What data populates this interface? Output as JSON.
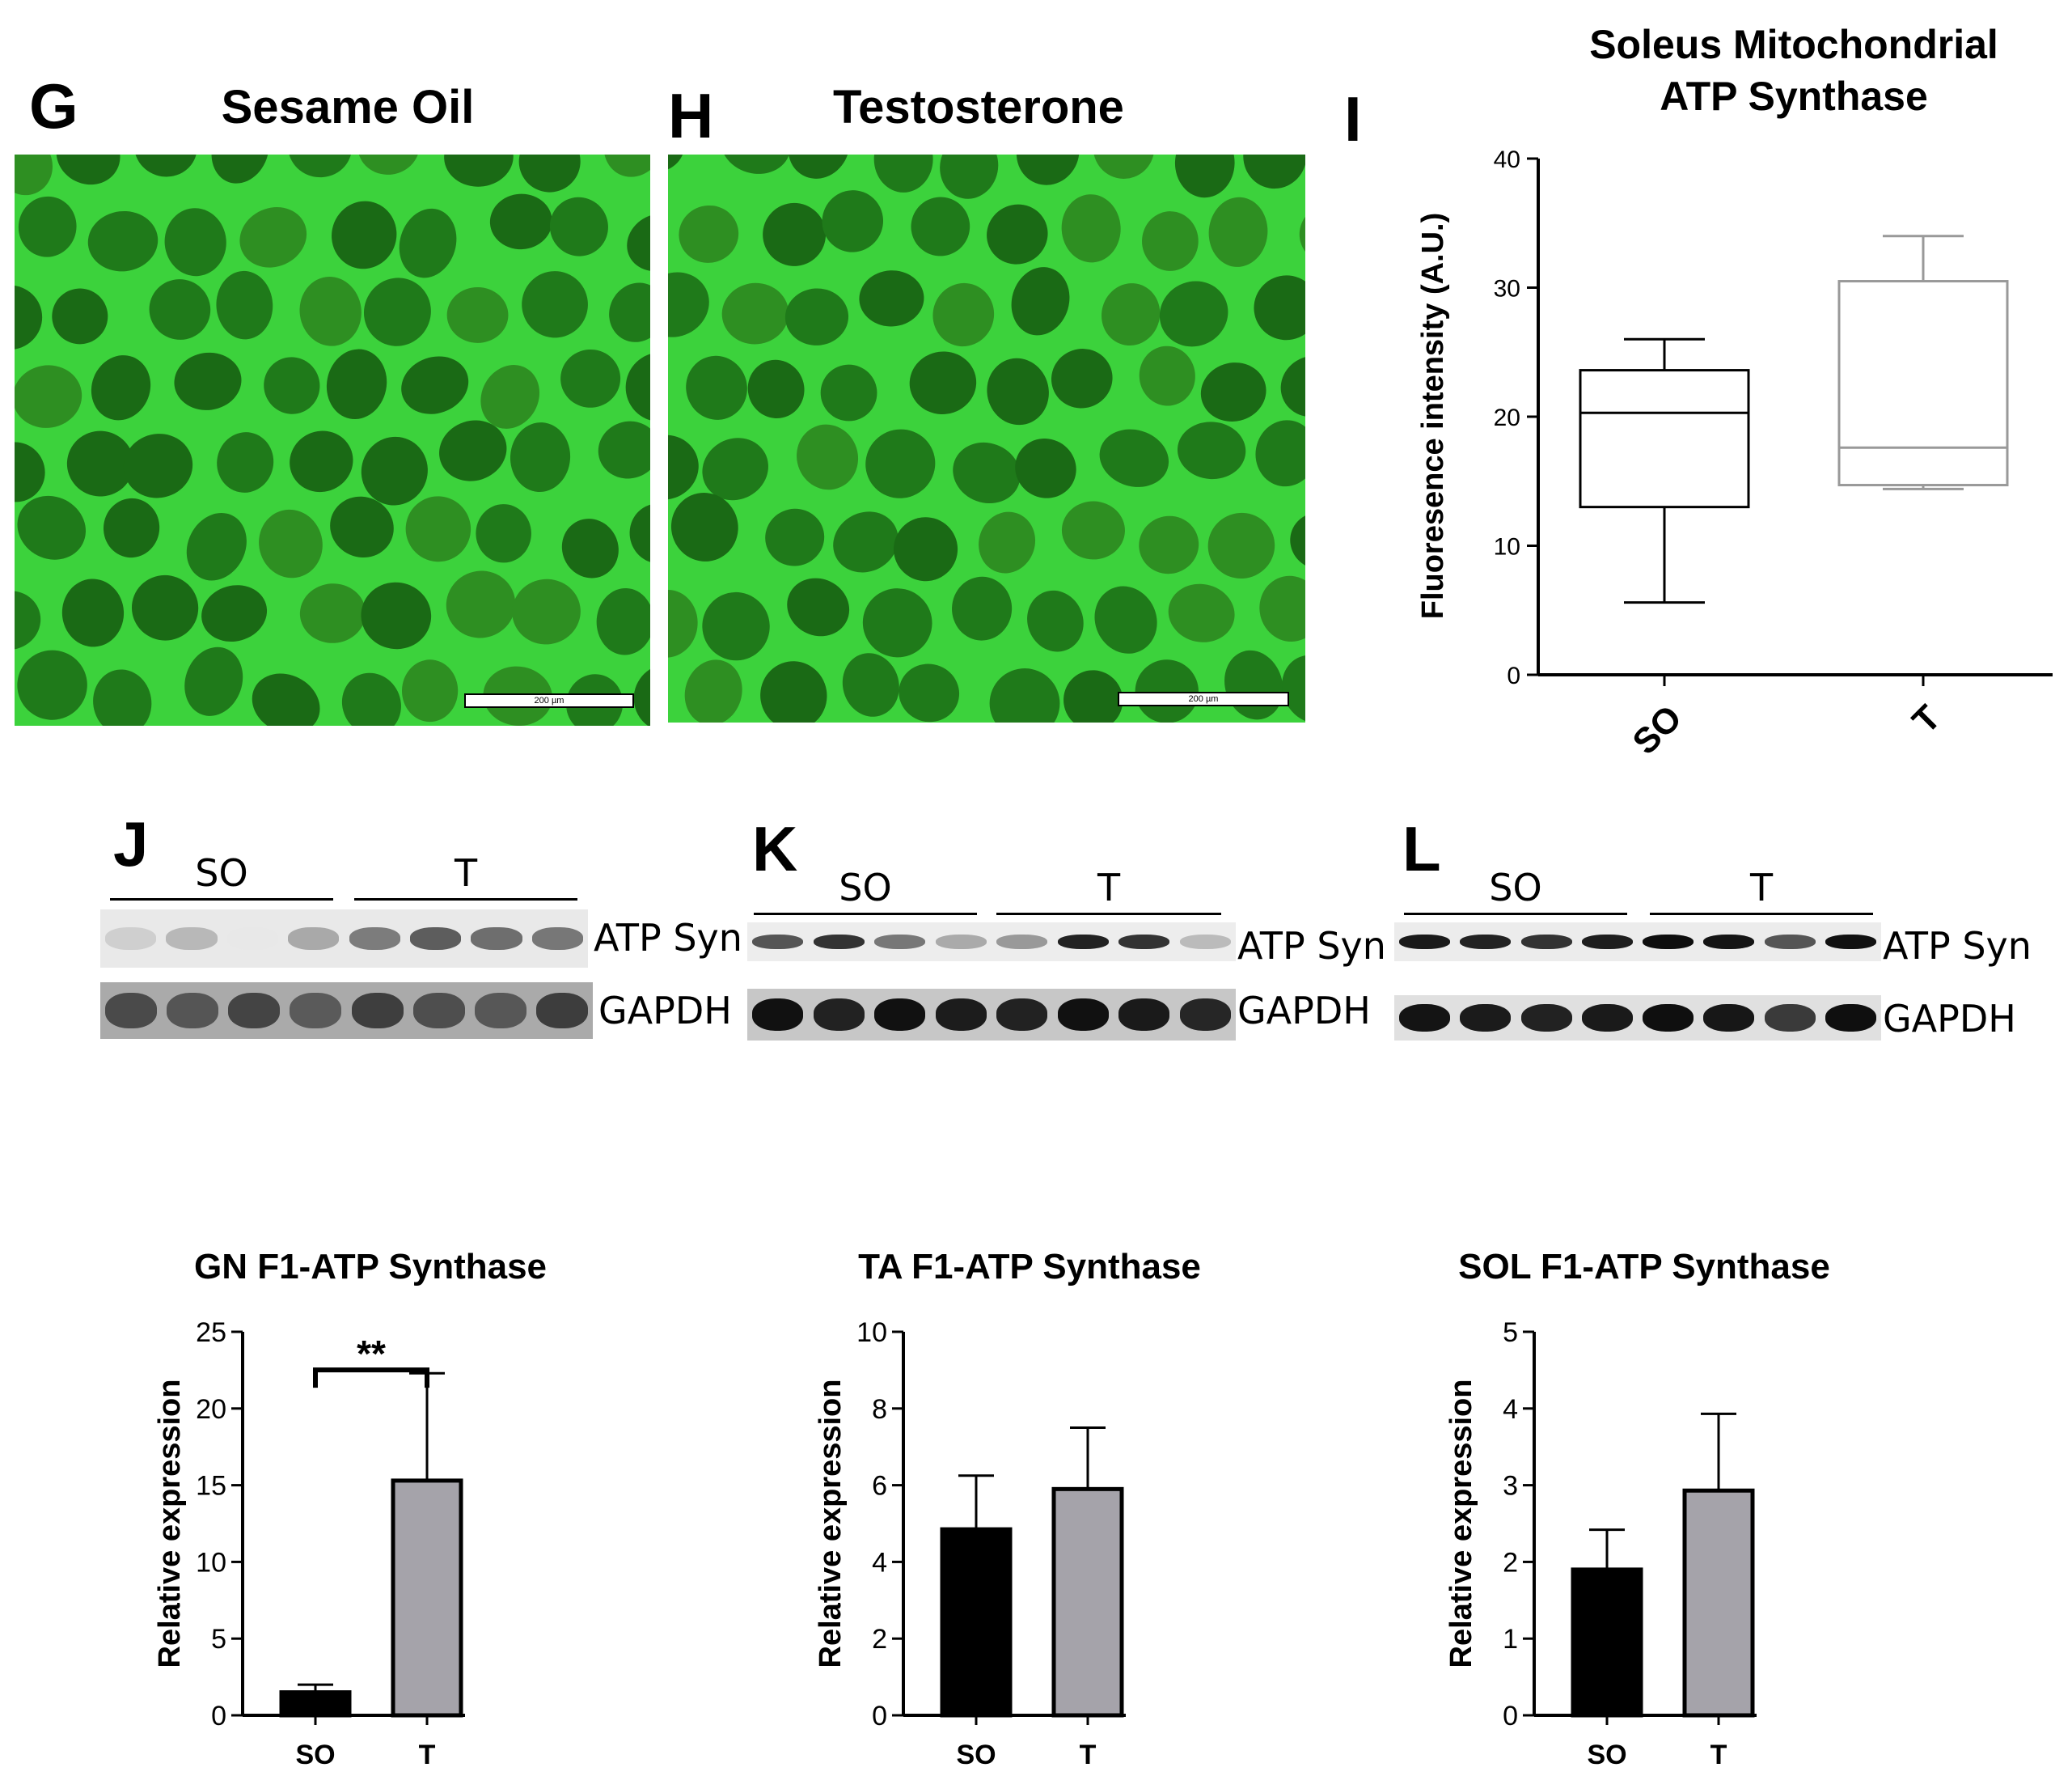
{
  "panels": {
    "G": {
      "letter": "G",
      "title": "Sesame Oil",
      "scale_bar": "200 µm"
    },
    "H": {
      "letter": "H",
      "title": "Testosterone",
      "scale_bar": "200 µm"
    },
    "I": {
      "letter": "I"
    },
    "J": {
      "letter": "J",
      "groups": [
        "SO",
        "T"
      ],
      "bands": [
        "ATP Syn",
        "GAPDH"
      ]
    },
    "K": {
      "letter": "K",
      "groups": [
        "SO",
        "T"
      ],
      "bands": [
        "ATP Syn",
        "GAPDH"
      ]
    },
    "L": {
      "letter": "L",
      "groups": [
        "SO",
        "T"
      ],
      "bands": [
        "ATP Syn",
        "GAPDH"
      ]
    }
  },
  "colors": {
    "fluorescence": "#1f7a1a",
    "membrane": "#3cd23c",
    "bar_so": "#000000",
    "bar_t": "#a5a3aa",
    "box_t": "#999999"
  },
  "chart_data": [
    {
      "id": "I",
      "type": "box",
      "title": "Soleus Mitochondrial ATP Synthase",
      "title_lines": [
        "Soleus Mitochondrial",
        "ATP Synthase"
      ],
      "ylabel": "Fluoresence intensity (A.U.)",
      "ylim": [
        0,
        40
      ],
      "yticks": [
        0,
        10,
        20,
        30,
        40
      ],
      "categories": [
        "SO",
        "T"
      ],
      "boxes": [
        {
          "name": "SO",
          "min": 5.6,
          "q1": 13.0,
          "median": 20.3,
          "q3": 23.6,
          "max": 26.0
        },
        {
          "name": "T",
          "min": 14.4,
          "q1": 14.7,
          "median": 17.6,
          "q3": 30.5,
          "max": 34.0
        }
      ]
    },
    {
      "id": "GN",
      "type": "bar",
      "title": "GN F1-ATP Synthase",
      "ylabel": "Relative expression",
      "ylim": [
        0,
        25
      ],
      "yticks": [
        0,
        5,
        10,
        15,
        20,
        25
      ],
      "categories": [
        "SO",
        "T"
      ],
      "values": [
        1.5,
        15.3
      ],
      "errors": [
        0.5,
        7.0
      ],
      "significance": "**"
    },
    {
      "id": "TA",
      "type": "bar",
      "title": "TA F1-ATP Synthase",
      "ylabel": "Relative expression",
      "ylim": [
        0,
        10
      ],
      "yticks": [
        0,
        2,
        4,
        6,
        8,
        10
      ],
      "categories": [
        "SO",
        "T"
      ],
      "values": [
        4.85,
        5.9
      ],
      "errors": [
        1.4,
        1.6
      ]
    },
    {
      "id": "SOL",
      "type": "bar",
      "title": "SOL F1-ATP Synthase",
      "ylabel": "Relative expression",
      "ylim": [
        0,
        5
      ],
      "yticks": [
        0,
        1,
        2,
        3,
        4,
        5
      ],
      "categories": [
        "SO",
        "T"
      ],
      "values": [
        1.9,
        2.93
      ],
      "errors": [
        0.52,
        1.0
      ]
    }
  ]
}
